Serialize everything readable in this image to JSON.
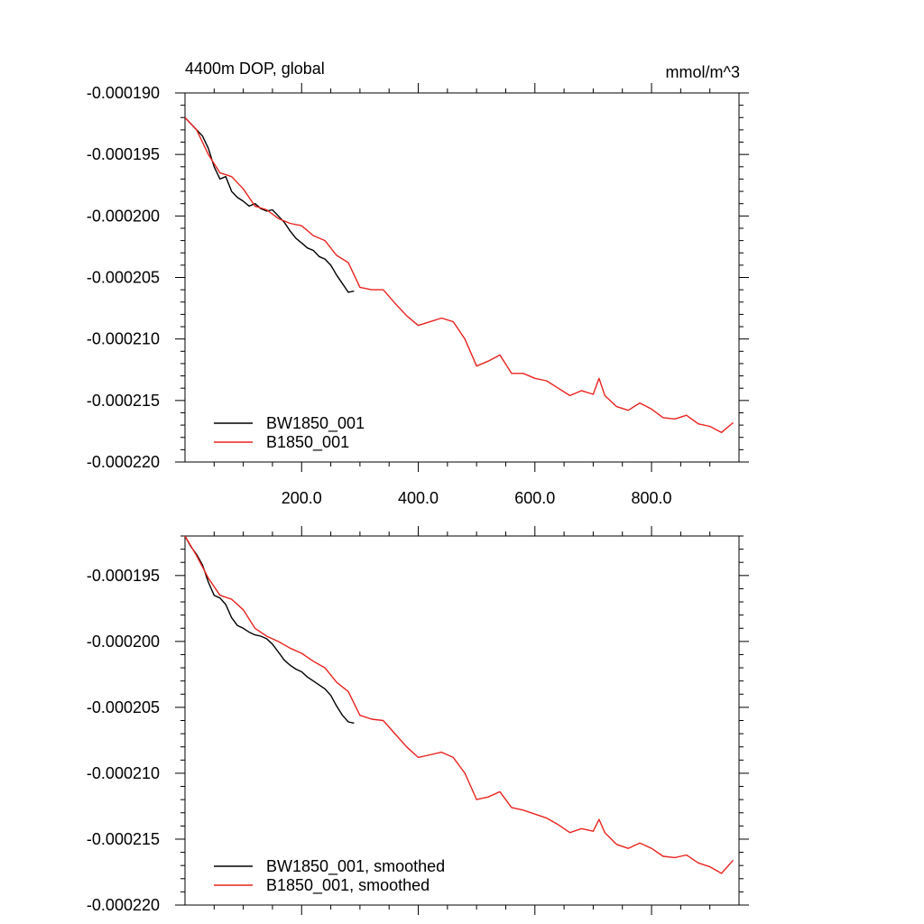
{
  "chart_data": [
    {
      "type": "line",
      "title": "4400m DOP, global",
      "units": "mmol/m^3",
      "xlim": [
        0,
        950
      ],
      "ylim": [
        -0.00022,
        -0.00019
      ],
      "xticks": [
        200,
        400,
        600,
        800
      ],
      "xtick_labels": [
        "200.0",
        "400.0",
        "600.0",
        "800.0"
      ],
      "yticks": [
        -0.00019,
        -0.000195,
        -0.0002,
        -0.000205,
        -0.00021,
        -0.000215,
        -0.00022
      ],
      "ytick_labels": [
        "-0.000190",
        "-0.000195",
        "-0.000200",
        "-0.000205",
        "-0.000210",
        "-0.000215",
        "-0.000220"
      ],
      "legend_position": "bottom-left",
      "series": [
        {
          "name": "BW1850_001",
          "color": "#000000",
          "x": [
            0,
            10,
            20,
            30,
            40,
            50,
            60,
            70,
            80,
            90,
            100,
            110,
            120,
            130,
            140,
            150,
            160,
            170,
            180,
            190,
            200,
            210,
            220,
            230,
            240,
            250,
            260,
            270,
            280,
            290
          ],
          "y": [
            -0.000192,
            -0.0001925,
            -0.000193,
            -0.0001935,
            -0.0001945,
            -0.000196,
            -0.000197,
            -0.0001968,
            -0.000198,
            -0.0001985,
            -0.0001988,
            -0.0001992,
            -0.000199,
            -0.0001994,
            -0.0001996,
            -0.0001995,
            -0.0002,
            -0.0002005,
            -0.0002012,
            -0.0002018,
            -0.0002022,
            -0.0002026,
            -0.0002028,
            -0.0002033,
            -0.0002035,
            -0.000204,
            -0.0002048,
            -0.0002055,
            -0.0002062,
            -0.0002061
          ]
        },
        {
          "name": "B1850_001",
          "color": "#e8231f",
          "x": [
            0,
            20,
            40,
            60,
            80,
            100,
            120,
            140,
            160,
            180,
            200,
            220,
            240,
            260,
            280,
            300,
            320,
            340,
            360,
            380,
            400,
            420,
            440,
            460,
            480,
            500,
            520,
            540,
            560,
            580,
            600,
            620,
            640,
            660,
            680,
            700,
            710,
            720,
            740,
            760,
            780,
            800,
            820,
            840,
            860,
            880,
            900,
            920,
            940
          ],
          "y": [
            -0.000192,
            -0.000193,
            -0.000195,
            -0.0001965,
            -0.0001968,
            -0.0001978,
            -0.0001992,
            -0.0001995,
            -0.0002002,
            -0.0002006,
            -0.0002008,
            -0.0002016,
            -0.000202,
            -0.0002032,
            -0.0002038,
            -0.0002058,
            -0.000206,
            -0.000206,
            -0.0002071,
            -0.0002081,
            -0.0002089,
            -0.0002086,
            -0.0002083,
            -0.0002086,
            -0.00021,
            -0.0002122,
            -0.0002118,
            -0.0002113,
            -0.0002128,
            -0.0002128,
            -0.0002132,
            -0.0002134,
            -0.000214,
            -0.0002146,
            -0.0002142,
            -0.0002145,
            -0.0002132,
            -0.0002146,
            -0.0002155,
            -0.0002158,
            -0.0002152,
            -0.0002157,
            -0.0002164,
            -0.0002165,
            -0.0002162,
            -0.0002169,
            -0.0002171,
            -0.0002176,
            -0.0002168
          ]
        }
      ]
    },
    {
      "type": "line",
      "xlim": [
        0,
        950
      ],
      "ylim": [
        -0.00022,
        -0.000192
      ],
      "xticks": [
        200,
        400,
        600,
        800
      ],
      "yticks": [
        -0.000195,
        -0.0002,
        -0.000205,
        -0.00021,
        -0.000215,
        -0.00022
      ],
      "ytick_labels": [
        "-0.000195",
        "-0.000200",
        "-0.000205",
        "-0.000210",
        "-0.000215",
        "-0.000220"
      ],
      "legend_position": "bottom-left",
      "series": [
        {
          "name": "BW1850_001, smoothed",
          "color": "#000000",
          "x": [
            0,
            10,
            20,
            30,
            40,
            50,
            60,
            70,
            80,
            90,
            100,
            110,
            120,
            130,
            140,
            150,
            160,
            170,
            180,
            190,
            200,
            210,
            220,
            230,
            240,
            250,
            260,
            270,
            280,
            290
          ],
          "y": [
            -0.000192,
            -0.0001928,
            -0.0001934,
            -0.0001942,
            -0.0001955,
            -0.0001965,
            -0.0001967,
            -0.0001972,
            -0.0001982,
            -0.0001988,
            -0.000199,
            -0.0001993,
            -0.0001995,
            -0.0001996,
            -0.0001998,
            -0.0002002,
            -0.0002008,
            -0.0002014,
            -0.0002018,
            -0.0002021,
            -0.0002023,
            -0.0002027,
            -0.000203,
            -0.0002033,
            -0.0002036,
            -0.0002041,
            -0.0002049,
            -0.0002056,
            -0.0002061,
            -0.0002062
          ]
        },
        {
          "name": "B1850_001, smoothed",
          "color": "#e8231f",
          "x": [
            0,
            20,
            40,
            60,
            80,
            100,
            120,
            140,
            160,
            180,
            200,
            220,
            240,
            260,
            280,
            300,
            320,
            340,
            360,
            380,
            400,
            420,
            440,
            460,
            480,
            500,
            520,
            540,
            560,
            580,
            600,
            620,
            640,
            660,
            680,
            700,
            710,
            720,
            740,
            760,
            780,
            800,
            820,
            840,
            860,
            880,
            900,
            920,
            940
          ],
          "y": [
            -0.000192,
            -0.0001935,
            -0.0001952,
            -0.0001965,
            -0.0001968,
            -0.0001976,
            -0.000199,
            -0.0001996,
            -0.0002,
            -0.0002005,
            -0.0002009,
            -0.0002015,
            -0.000202,
            -0.0002031,
            -0.0002038,
            -0.0002056,
            -0.0002059,
            -0.000206,
            -0.000207,
            -0.000208,
            -0.0002088,
            -0.0002086,
            -0.0002084,
            -0.0002088,
            -0.00021,
            -0.000212,
            -0.0002118,
            -0.0002114,
            -0.0002126,
            -0.0002128,
            -0.0002131,
            -0.0002134,
            -0.0002139,
            -0.0002145,
            -0.0002142,
            -0.0002144,
            -0.0002135,
            -0.0002145,
            -0.0002154,
            -0.0002157,
            -0.0002153,
            -0.0002157,
            -0.0002163,
            -0.0002164,
            -0.0002162,
            -0.0002168,
            -0.0002171,
            -0.0002176,
            -0.0002166
          ]
        }
      ]
    }
  ]
}
